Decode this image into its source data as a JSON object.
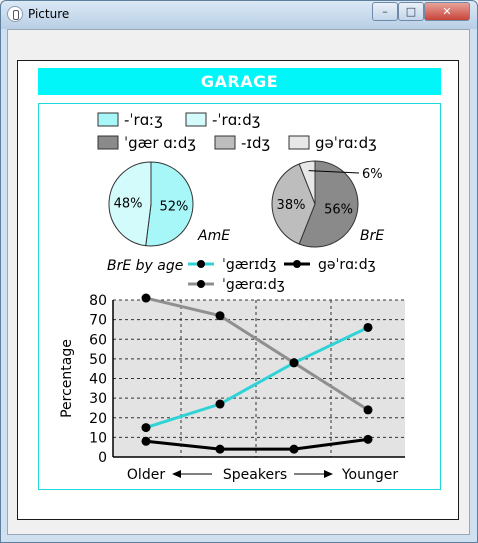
{
  "window": {
    "title": "Picture",
    "controls": {
      "minimize": "–",
      "maximize": "□",
      "close": "✕"
    }
  },
  "figure": {
    "banner": "GARAGE",
    "pie_legend": [
      {
        "label": "-ˈrɑːʒ",
        "color": "#a8f7f8"
      },
      {
        "label": "-ˈrɑːdʒ",
        "color": "#d4fbfc"
      },
      {
        "label": "ˈgær ɑːdʒ",
        "color": "#8a8a8a"
      },
      {
        "label": "-ɪdʒ",
        "color": "#bdbdbd"
      },
      {
        "label": "gəˈrɑːdʒ",
        "color": "#e8e8e8"
      }
    ],
    "ame_label": "AmE",
    "bre_label": "BrE",
    "line_legend_title": "BrE by age",
    "line_legend": [
      {
        "label": "ˈgærɪdʒ",
        "color": "#2fd3d6"
      },
      {
        "label": "gəˈrɑːdʒ",
        "color": "#000000"
      },
      {
        "label": "ˈgærɑːdʒ",
        "color": "#8f8f8f"
      }
    ],
    "x_left": "Older",
    "x_mid": "Speakers",
    "x_right": "Younger",
    "y_label": "Percentage"
  },
  "chart_data": [
    {
      "type": "pie",
      "label": "AmE",
      "slices": [
        {
          "label": "-ˈrɑːʒ",
          "value": 52,
          "text": "52%",
          "color": "#a8f7f8"
        },
        {
          "label": "-ˈrɑːdʒ",
          "value": 48,
          "text": "48%",
          "color": "#d4fbfc"
        }
      ]
    },
    {
      "type": "pie",
      "label": "BrE",
      "slices": [
        {
          "label": "ˈgær ɑːdʒ",
          "value": 56,
          "text": "56%",
          "color": "#8a8a8a"
        },
        {
          "label": "-ɪdʒ",
          "value": 38,
          "text": "38%",
          "color": "#bdbdbd"
        },
        {
          "label": "gəˈrɑːdʒ",
          "value": 6,
          "text": "6%",
          "color": "#e8e8e8"
        }
      ]
    },
    {
      "type": "line",
      "x": [
        1,
        2,
        3,
        4
      ],
      "series": [
        {
          "name": "ˈgærɪdʒ",
          "values": [
            15,
            27,
            48,
            66
          ],
          "color": "#2fd3d6"
        },
        {
          "name": "ˈgærɑːdʒ",
          "values": [
            81,
            72,
            48,
            24
          ],
          "color": "#8f8f8f"
        },
        {
          "name": "gəˈrɑːdʒ",
          "values": [
            8,
            4,
            4,
            9
          ],
          "color": "#000000"
        }
      ],
      "ylim": [
        0,
        80
      ],
      "yticks": [
        0,
        10,
        20,
        30,
        40,
        50,
        60,
        70,
        80
      ],
      "xlabel": "Speakers",
      "ylabel": "Percentage",
      "grid": true
    }
  ]
}
